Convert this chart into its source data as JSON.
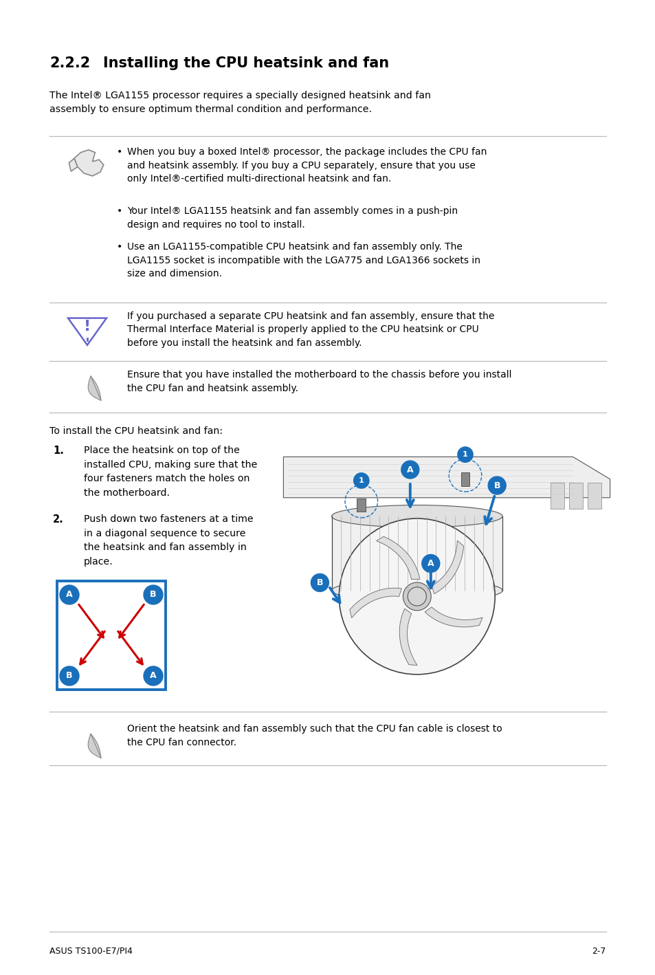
{
  "bg_color": "#ffffff",
  "section_number": "2.2.2",
  "section_title": "Installing the CPU heatsink and fan",
  "intro_text": "The Intel® LGA1155 processor requires a specially designed heatsink and fan\nassembly to ensure optimum thermal condition and performance.",
  "note_bullets": [
    "When you buy a boxed Intel® processor, the package includes the CPU fan\nand heatsink assembly. If you buy a CPU separately, ensure that you use\nonly Intel®-certified multi-directional heatsink and fan.",
    "Your Intel® LGA1155 heatsink and fan assembly comes in a push-pin\ndesign and requires no tool to install.",
    "Use an LGA1155-compatible CPU heatsink and fan assembly only. The\nLGA1155 socket is incompatible with the LGA775 and LGA1366 sockets in\nsize and dimension."
  ],
  "warning_text": "If you purchased a separate CPU heatsink and fan assembly, ensure that the\nThermal Interface Material is properly applied to the CPU heatsink or CPU\nbefore you install the heatsink and fan assembly.",
  "note2_text": "Ensure that you have installed the motherboard to the chassis before you install\nthe CPU fan and heatsink assembly.",
  "install_title": "To install the CPU heatsink and fan:",
  "step1_text": "Place the heatsink on top of the\ninstalled CPU, making sure that the\nfour fasteners match the holes on\nthe motherboard.",
  "step2_text": "Push down two fasteners at a time\nin a diagonal sequence to secure\nthe heatsink and fan assembly in\nplace.",
  "note3_text": "Orient the heatsink and fan assembly such that the CPU fan cable is closest to\nthe CPU fan connector.",
  "footer_left": "ASUS TS100-E7/PI4",
  "footer_right": "2-7",
  "text_color": "#000000",
  "line_color": "#bbbbbb",
  "blue_color": "#1a6fba",
  "red_color": "#cc0000",
  "warn_color": "#6666cc"
}
